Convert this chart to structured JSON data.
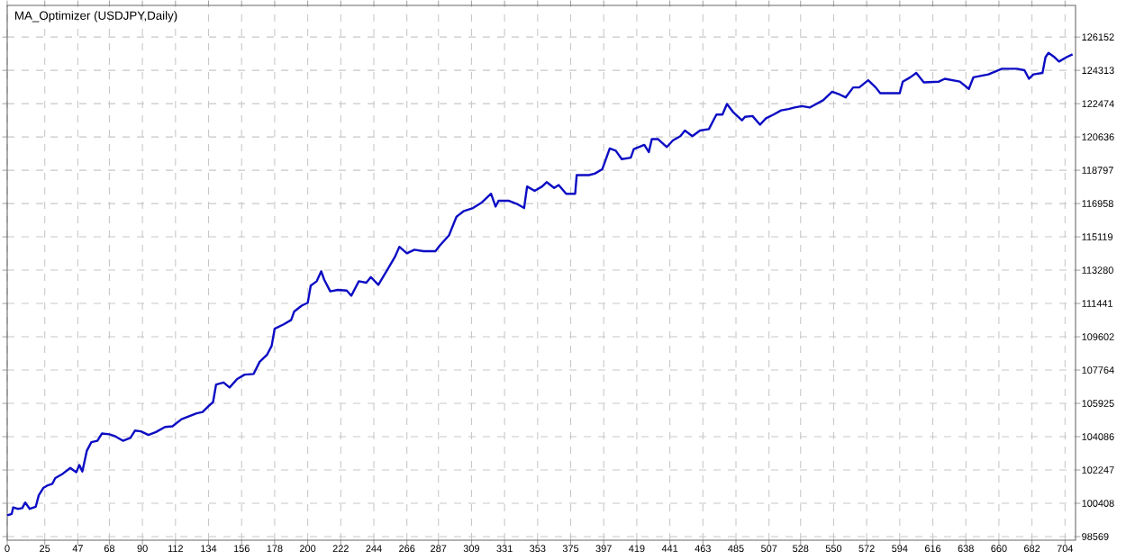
{
  "chart_data": {
    "type": "line",
    "title": "MA_Optimizer (USDJPY,Daily)",
    "xlim": [
      0,
      711
    ],
    "ylim": [
      98370,
      127900
    ],
    "xticks": [
      0,
      25,
      47,
      68,
      90,
      112,
      134,
      156,
      178,
      200,
      222,
      244,
      266,
      287,
      309,
      331,
      353,
      375,
      397,
      419,
      441,
      463,
      485,
      507,
      528,
      550,
      572,
      594,
      616,
      638,
      660,
      682,
      704
    ],
    "yticks": [
      98569,
      100408,
      102247,
      104086,
      105925,
      107764,
      109602,
      111441,
      113280,
      115119,
      116958,
      118797,
      120636,
      122474,
      124313,
      126152
    ],
    "grid": true,
    "marker": "none",
    "line_style": "solid",
    "series": [
      {
        "color": "#0c0cc4",
        "x": [
          0,
          3,
          4,
          7,
          10,
          12,
          15,
          19,
          21,
          24,
          27,
          30,
          32,
          37,
          42,
          44,
          46,
          48,
          50,
          53,
          56,
          60,
          63,
          68,
          72,
          77,
          82,
          85,
          89,
          94,
          99,
          105,
          110,
          116,
          121,
          126,
          130,
          134,
          137,
          139,
          144,
          148,
          153,
          158,
          164,
          168,
          173,
          176,
          178,
          184,
          189,
          191,
          196,
          200,
          202,
          206,
          209,
          211,
          215,
          220,
          226,
          229,
          234,
          239,
          242,
          247,
          253,
          258,
          261,
          266,
          271,
          277,
          285,
          288,
          294,
          299,
          304,
          310,
          316,
          322,
          325,
          327,
          334,
          339,
          344,
          346,
          351,
          356,
          359,
          364,
          367,
          372,
          377,
          378,
          379,
          387,
          391,
          396,
          401,
          405,
          409,
          415,
          417,
          424,
          427,
          429,
          433,
          439,
          443,
          448,
          451,
          456,
          461,
          467,
          472,
          476,
          479,
          483,
          489,
          491,
          496,
          501,
          505,
          510,
          515,
          520,
          524,
          529,
          534,
          543,
          549,
          554,
          558,
          563,
          567,
          573,
          578,
          581,
          594,
          596,
          601,
          605,
          610,
          620,
          624,
          634,
          640,
          643,
          653,
          662,
          672,
          677,
          680,
          683,
          689,
          691,
          693,
          697,
          700,
          705,
          709
        ],
        "values": [
          99740,
          99820,
          100180,
          100100,
          100140,
          100450,
          100100,
          100220,
          100850,
          101250,
          101400,
          101480,
          101800,
          102040,
          102360,
          102240,
          102120,
          102520,
          102160,
          103310,
          103780,
          103860,
          104260,
          104220,
          104100,
          103860,
          104020,
          104420,
          104380,
          104180,
          104340,
          104620,
          104660,
          105050,
          105210,
          105370,
          105450,
          105770,
          106000,
          106960,
          107080,
          106800,
          107270,
          107510,
          107550,
          108220,
          108620,
          109100,
          110050,
          110290,
          110530,
          111000,
          111320,
          111480,
          112430,
          112670,
          113220,
          112750,
          112110,
          112190,
          112150,
          111870,
          112670,
          112590,
          112900,
          112470,
          113300,
          114010,
          114570,
          114210,
          114410,
          114330,
          114330,
          114650,
          115200,
          116230,
          116550,
          116710,
          117030,
          117500,
          116790,
          117110,
          117110,
          116950,
          116710,
          117900,
          117660,
          117900,
          118140,
          117820,
          117980,
          117500,
          117500,
          117500,
          118530,
          118530,
          118610,
          118850,
          120000,
          119880,
          119410,
          119490,
          119960,
          120200,
          119800,
          120520,
          120520,
          120080,
          120440,
          120680,
          120990,
          120680,
          120990,
          121070,
          121870,
          121870,
          122460,
          122020,
          121550,
          121750,
          121790,
          121310,
          121670,
          121870,
          122100,
          122180,
          122260,
          122340,
          122260,
          122660,
          123130,
          122980,
          122820,
          123370,
          123370,
          123770,
          123370,
          123050,
          123050,
          123690,
          123930,
          124170,
          123650,
          123690,
          123850,
          123690,
          123290,
          123930,
          124090,
          124400,
          124400,
          124320,
          123850,
          124090,
          124170,
          125040,
          125280,
          125040,
          124800,
          125040,
          125200
        ]
      }
    ]
  }
}
